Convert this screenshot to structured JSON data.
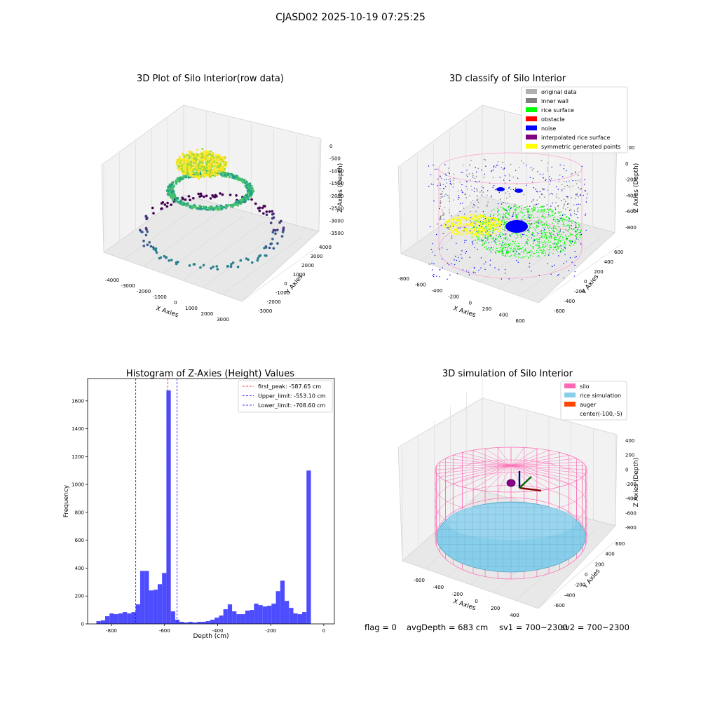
{
  "suptitle": "CJASD02 2025-10-19 07:25:25",
  "status": {
    "flag": "flag = 0",
    "avg_depth": "avgDepth = 683 cm",
    "sv1": "sv1 = 700~2300",
    "sv2": "sv2 = 700~2300"
  },
  "chart_data": [
    {
      "type": "scatter",
      "subtype": "3d",
      "title": "3D Plot of Silo Interior(row data)",
      "xlabel": "X Axies",
      "ylabel": "Y Axies",
      "zlabel": "Z Axies (Depth)",
      "x_ticks": [
        -4000,
        -3000,
        -2000,
        -1000,
        0,
        1000,
        2000,
        3000
      ],
      "y_ticks": [
        -3000,
        -2000,
        -1000,
        0,
        1000,
        2000,
        3000,
        4000
      ],
      "z_ticks": [
        0,
        -500,
        -1000,
        -1500,
        -2000,
        -2500,
        -3000,
        -3500
      ],
      "colormap": "viridis by depth"
    },
    {
      "type": "scatter",
      "subtype": "3d",
      "title": "3D classify of Silo Interior",
      "xlabel": "X Axies",
      "ylabel": "Y Axies",
      "zlabel": "Z Axies (Depth)",
      "x_ticks": [
        -800,
        -600,
        -400,
        -200,
        0,
        200,
        400,
        600
      ],
      "y_ticks": [
        -600,
        -400,
        -200,
        0,
        200,
        400,
        600
      ],
      "z_ticks": [
        200,
        0,
        -200,
        -400,
        -600,
        -800
      ],
      "legend_position": "top-right",
      "legend": [
        {
          "label": "original data",
          "color": "#b0b0b0"
        },
        {
          "label": "inner wall",
          "color": "#808080"
        },
        {
          "label": "rice surface",
          "color": "#00ff00"
        },
        {
          "label": "obstacle",
          "color": "#ff0000"
        },
        {
          "label": "noise",
          "color": "#0000ff"
        },
        {
          "label": "interpolated rice surface",
          "color": "#800080"
        },
        {
          "label": "symmetric generated points",
          "color": "#ffff00"
        }
      ]
    },
    {
      "type": "bar",
      "subtype": "histogram",
      "title": "Histogram of Z-Axies (Height) Values",
      "xlabel": "Depth (cm)",
      "ylabel": "Frequency",
      "xlim": [
        -890,
        40
      ],
      "ylim": [
        0,
        1760
      ],
      "x_ticks": [
        -800,
        -600,
        -400,
        -200,
        0
      ],
      "y_ticks": [
        0,
        200,
        400,
        600,
        800,
        1000,
        1200,
        1400,
        1600
      ],
      "bar_color": "#4d4dff",
      "bin_width": 16.5,
      "bin_start": -857,
      "frequencies": [
        20,
        25,
        55,
        75,
        70,
        75,
        85,
        75,
        85,
        140,
        380,
        380,
        240,
        245,
        285,
        365,
        1675,
        90,
        30,
        15,
        10,
        15,
        10,
        15,
        15,
        20,
        30,
        45,
        60,
        105,
        140,
        90,
        70,
        70,
        95,
        100,
        145,
        135,
        125,
        130,
        145,
        235,
        310,
        165,
        115,
        75,
        70,
        85,
        1100
      ],
      "reference_lines": [
        {
          "label": "first_peak: -587.65 cm",
          "x": -587.65,
          "color": "#ff0000"
        },
        {
          "label": "Upper_limit: -553.10 cm",
          "x": -553.1,
          "color": "#0000ff"
        },
        {
          "label": "Lower_limit: -708.60 cm",
          "x": -708.6,
          "color": "#0000ff"
        }
      ],
      "legend_position": "top-right"
    },
    {
      "type": "scatter",
      "subtype": "3d",
      "title": "3D simulation of Silo Interior",
      "xlabel": "X Axies",
      "ylabel": "Y Axies",
      "zlabel": "Z Axies (Depth)",
      "x_ticks": [
        -600,
        -400,
        -200,
        0,
        200,
        400
      ],
      "y_ticks": [
        -600,
        -400,
        -200,
        0,
        200,
        400,
        600
      ],
      "z_ticks": [
        400,
        200,
        0,
        -200,
        -400,
        -600,
        -800
      ],
      "legend_position": "top-right",
      "legend": [
        {
          "label": "silo",
          "color": "#ff69b4"
        },
        {
          "label": "rice simulation",
          "color": "#87ceeb"
        },
        {
          "label": "auger",
          "color": "#ff4500"
        },
        {
          "label": "center(-100,-5)",
          "color": ""
        }
      ]
    }
  ]
}
